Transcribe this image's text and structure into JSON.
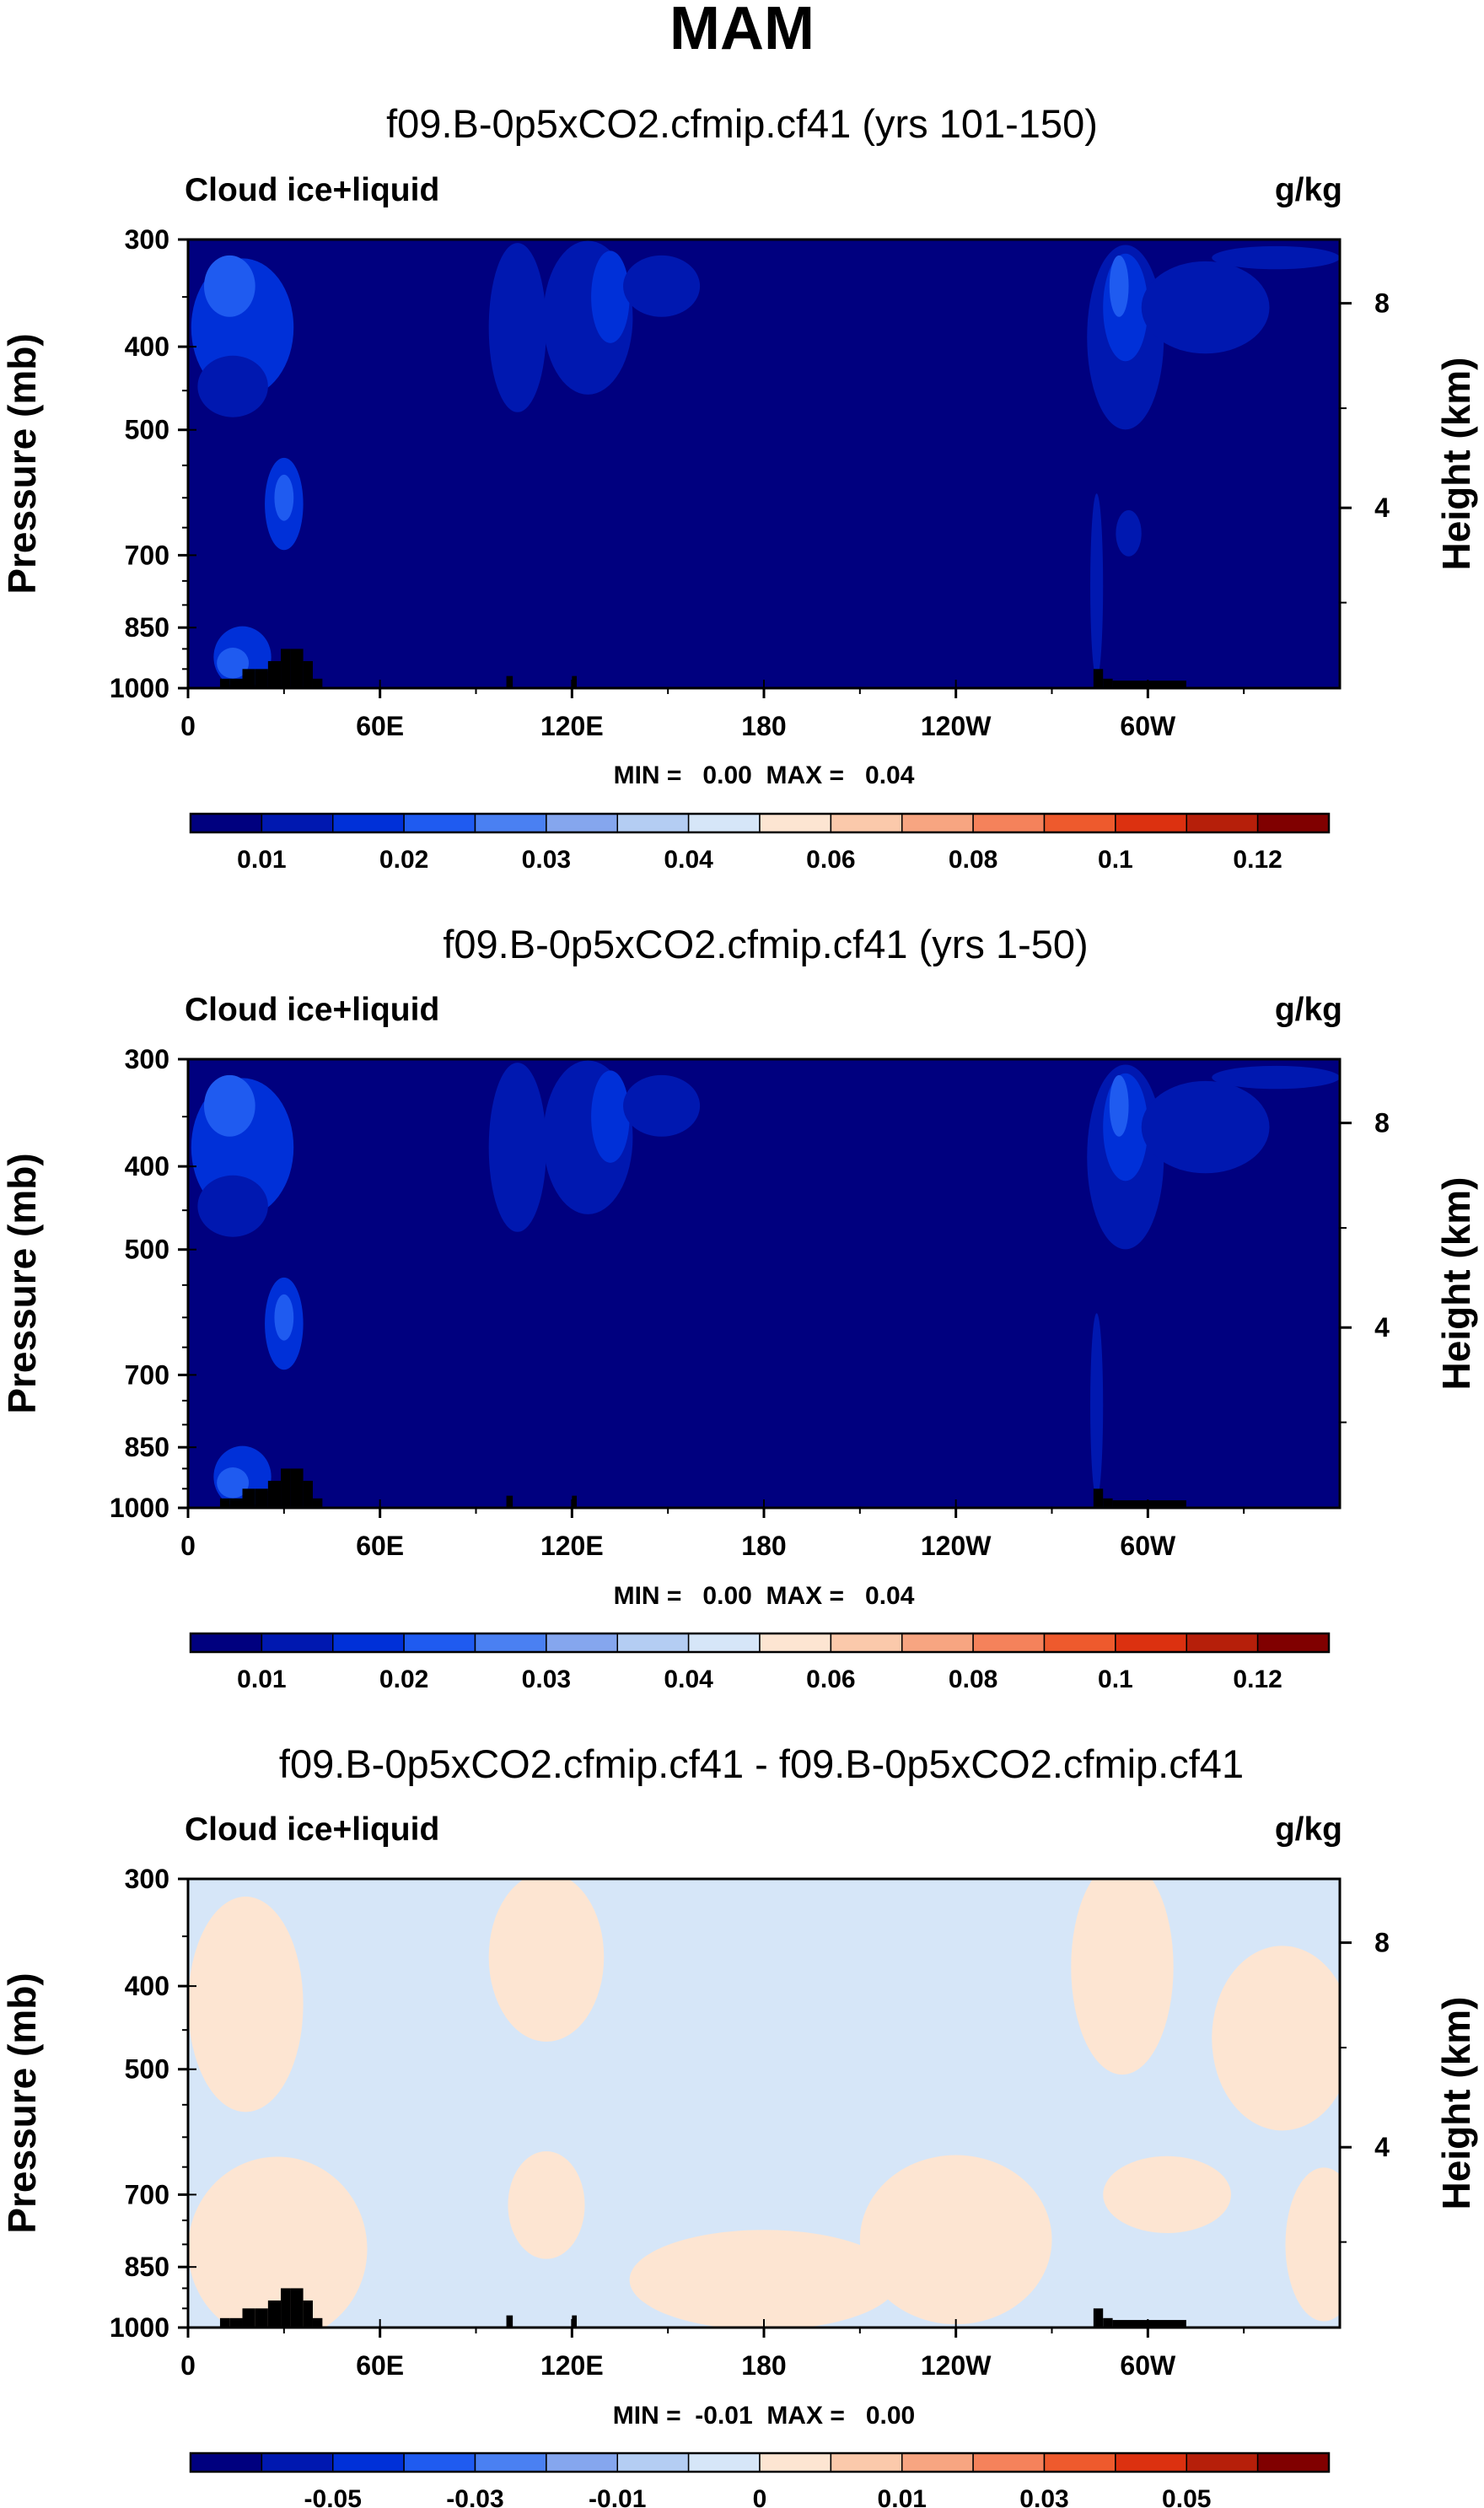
{
  "figure": {
    "season": "MAM"
  },
  "colors": {
    "scale": [
      "#00007f",
      "#0018b0",
      "#0030d8",
      "#1f5bf0",
      "#4a80f2",
      "#85a6ee",
      "#b4cdf3",
      "#d6e6f8",
      "#fde5d2",
      "#fbc9ab",
      "#f7a581",
      "#f5825b",
      "#ee5a2d",
      "#dc3110",
      "#b61f0a",
      "#800000"
    ],
    "terrain": "#000000"
  },
  "chart_data": [
    {
      "type": "heatmap",
      "id": "panel1",
      "title": "f09.B-0p5xCO2.cfmip.cf41 (yrs 101-150)",
      "left_label": "Cloud ice+liquid",
      "right_label": "g/kg",
      "ylabel": "Pressure (mb)",
      "y2label": "Height (km)",
      "yticks": [
        300,
        400,
        500,
        700,
        850,
        1000
      ],
      "yticks_right": [
        "8",
        "4"
      ],
      "xticks": [
        "0",
        "60E",
        "120E",
        "180",
        "120W",
        "60W"
      ],
      "xlim_deg_east": [
        0,
        360
      ],
      "ylim_mb": [
        1000,
        300
      ],
      "stats": "MIN =   0.00  MAX =   0.04",
      "colorbar_labels": [
        "0.01",
        "0.02",
        "0.03",
        "0.04",
        "0.06",
        "0.08",
        "0.1",
        "0.12"
      ],
      "field": "small",
      "background_class": 0,
      "features": [
        {
          "lon": 17,
          "p": 380,
          "w": 16,
          "h": 90,
          "c": 2
        },
        {
          "lon": 13,
          "p": 340,
          "w": 8,
          "h": 40,
          "c": 3
        },
        {
          "lon": 14,
          "p": 445,
          "w": 11,
          "h": 40,
          "c": 1
        },
        {
          "lon": 30,
          "p": 610,
          "w": 6,
          "h": 60,
          "c": 2
        },
        {
          "lon": 30,
          "p": 600,
          "w": 3,
          "h": 30,
          "c": 3
        },
        {
          "lon": 17,
          "p": 920,
          "w": 9,
          "h": 40,
          "c": 2
        },
        {
          "lon": 14,
          "p": 935,
          "w": 5,
          "h": 20,
          "c": 3
        },
        {
          "lon": 103,
          "p": 380,
          "w": 9,
          "h": 110,
          "c": 1
        },
        {
          "lon": 125,
          "p": 370,
          "w": 14,
          "h": 100,
          "c": 1
        },
        {
          "lon": 132,
          "p": 350,
          "w": 6,
          "h": 60,
          "c": 2
        },
        {
          "lon": 148,
          "p": 340,
          "w": 12,
          "h": 40,
          "c": 1
        },
        {
          "lon": 293,
          "p": 390,
          "w": 12,
          "h": 120,
          "c": 1
        },
        {
          "lon": 293,
          "p": 360,
          "w": 7,
          "h": 70,
          "c": 2
        },
        {
          "lon": 291,
          "p": 340,
          "w": 3,
          "h": 40,
          "c": 3
        },
        {
          "lon": 318,
          "p": 360,
          "w": 20,
          "h": 60,
          "c": 1
        },
        {
          "lon": 340,
          "p": 315,
          "w": 20,
          "h": 15,
          "c": 1
        },
        {
          "lon": 284,
          "p": 760,
          "w": 2,
          "h": 120,
          "c": 1
        },
        {
          "lon": 294,
          "p": 660,
          "w": 4,
          "h": 30,
          "c": 1
        }
      ]
    },
    {
      "type": "heatmap",
      "id": "panel2",
      "title": "f09.B-0p5xCO2.cfmip.cf41 (yrs 1-50)",
      "left_label": "Cloud ice+liquid",
      "right_label": "g/kg",
      "ylabel": "Pressure (mb)",
      "y2label": "Height (km)",
      "yticks": [
        300,
        400,
        500,
        700,
        850,
        1000
      ],
      "yticks_right": [
        "8",
        "4"
      ],
      "xticks": [
        "0",
        "60E",
        "120E",
        "180",
        "120W",
        "60W"
      ],
      "xlim_deg_east": [
        0,
        360
      ],
      "ylim_mb": [
        1000,
        300
      ],
      "stats": "MIN =   0.00  MAX =   0.04",
      "colorbar_labels": [
        "0.01",
        "0.02",
        "0.03",
        "0.04",
        "0.06",
        "0.08",
        "0.1",
        "0.12"
      ],
      "field": "small",
      "background_class": 0,
      "features": [
        {
          "lon": 17,
          "p": 380,
          "w": 16,
          "h": 90,
          "c": 2
        },
        {
          "lon": 13,
          "p": 340,
          "w": 8,
          "h": 40,
          "c": 3
        },
        {
          "lon": 14,
          "p": 445,
          "w": 11,
          "h": 40,
          "c": 1
        },
        {
          "lon": 30,
          "p": 610,
          "w": 6,
          "h": 60,
          "c": 2
        },
        {
          "lon": 30,
          "p": 600,
          "w": 3,
          "h": 30,
          "c": 3
        },
        {
          "lon": 17,
          "p": 920,
          "w": 9,
          "h": 40,
          "c": 2
        },
        {
          "lon": 14,
          "p": 935,
          "w": 5,
          "h": 20,
          "c": 3
        },
        {
          "lon": 103,
          "p": 380,
          "w": 9,
          "h": 110,
          "c": 1
        },
        {
          "lon": 125,
          "p": 370,
          "w": 14,
          "h": 100,
          "c": 1
        },
        {
          "lon": 132,
          "p": 350,
          "w": 6,
          "h": 60,
          "c": 2
        },
        {
          "lon": 148,
          "p": 340,
          "w": 12,
          "h": 40,
          "c": 1
        },
        {
          "lon": 293,
          "p": 390,
          "w": 12,
          "h": 120,
          "c": 1
        },
        {
          "lon": 293,
          "p": 360,
          "w": 7,
          "h": 70,
          "c": 2
        },
        {
          "lon": 291,
          "p": 340,
          "w": 3,
          "h": 40,
          "c": 3
        },
        {
          "lon": 318,
          "p": 360,
          "w": 20,
          "h": 60,
          "c": 1
        },
        {
          "lon": 340,
          "p": 315,
          "w": 20,
          "h": 15,
          "c": 1
        },
        {
          "lon": 284,
          "p": 760,
          "w": 2,
          "h": 120,
          "c": 1
        }
      ]
    },
    {
      "type": "heatmap",
      "id": "panel3",
      "title": "f09.B-0p5xCO2.cfmip.cf41 - f09.B-0p5xCO2.cfmip.cf41",
      "left_label": "Cloud ice+liquid",
      "right_label": "g/kg",
      "ylabel": "Pressure (mb)",
      "y2label": "Height (km)",
      "yticks": [
        300,
        400,
        500,
        700,
        850,
        1000
      ],
      "yticks_right": [
        "8",
        "4"
      ],
      "xticks": [
        "0",
        "60E",
        "120E",
        "180",
        "120W",
        "60W"
      ],
      "xlim_deg_east": [
        0,
        360
      ],
      "ylim_mb": [
        1000,
        300
      ],
      "stats": "MIN =  -0.01  MAX =   0.00",
      "colorbar_labels": [
        "-0.05",
        "-0.03",
        "-0.01",
        "0",
        "0.01",
        "0.03",
        "0.05"
      ],
      "field": "diff",
      "background_class": 7,
      "features": [
        {
          "lon": 18,
          "p": 420,
          "w": 18,
          "h": 140,
          "c": 8
        },
        {
          "lon": 28,
          "p": 810,
          "w": 28,
          "h": 120,
          "c": 8
        },
        {
          "lon": 112,
          "p": 370,
          "w": 18,
          "h": 110,
          "c": 8
        },
        {
          "lon": 112,
          "p": 720,
          "w": 12,
          "h": 70,
          "c": 8
        },
        {
          "lon": 180,
          "p": 880,
          "w": 42,
          "h": 65,
          "c": 8
        },
        {
          "lon": 240,
          "p": 790,
          "w": 30,
          "h": 110,
          "c": 8
        },
        {
          "lon": 292,
          "p": 380,
          "w": 16,
          "h": 140,
          "c": 8
        },
        {
          "lon": 342,
          "p": 460,
          "w": 22,
          "h": 120,
          "c": 8
        },
        {
          "lon": 306,
          "p": 700,
          "w": 20,
          "h": 50,
          "c": 8
        },
        {
          "lon": 355,
          "p": 800,
          "w": 12,
          "h": 100,
          "c": 8
        }
      ]
    }
  ]
}
